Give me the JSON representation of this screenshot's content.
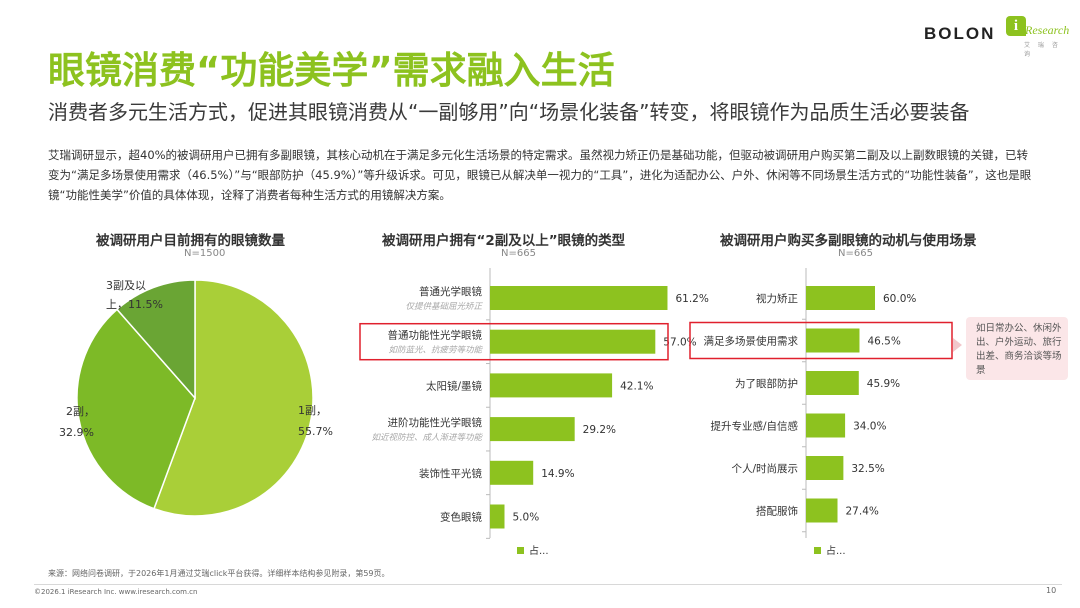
{
  "brand": {
    "bolon": "BOLON",
    "i": "i",
    "research": "Research",
    "sub": "艾 瑞 咨 询"
  },
  "title": "眼镜消费“功能美学”需求融入生活",
  "subtitle": "消费者多元生活方式，促进其眼镜消费从“一副够用”向“场景化装备”转变，将眼镜作为品质生活必要装备",
  "intro": "艾瑞调研显示，超40%的被调研用户已拥有多副眼镜，其核心动机在于满足多元化生活场景的特定需求。虽然视力矫正仍是基础功能，但驱动被调研用户购买第二副及以上副数眼镜的关键，已转变为“满足多场景使用需求（46.5%）”与“眼部防护（45.9%）”等升级诉求。可见，眼镜已从解决单一视力的“工具”，进化为适配办公、户外、休闲等不同场景生活方式的“功能性装备”，这也是眼镜“功能性美学”价值的具体体现，诠释了消费者每种生活方式的用镜解决方案。",
  "colors": {
    "accent": "#8dc21f",
    "dark_green": "#6aa534",
    "mid_green": "#7dba27",
    "light_green": "#a9cf38",
    "highlight": "#e0202d",
    "callout_bg": "#fbe6e8"
  },
  "chart_data": [
    {
      "type": "pie",
      "title": "被调研用户目前拥有的眼镜数量",
      "n": "N=1500",
      "slices": [
        {
          "label": "1副，",
          "value": 55.7,
          "value_label": "55.7%"
        },
        {
          "label": "2副，",
          "value": 32.9,
          "value_label": "32.9%"
        },
        {
          "label": "3副及以上，",
          "label_line1": "3副及以",
          "label_line2": "上，",
          "value": 11.5,
          "value_label": "11.5%"
        }
      ]
    },
    {
      "type": "bar",
      "orientation": "horizontal",
      "title": "被调研用户拥有“2副及以上”眼镜的类型",
      "n": "N=665",
      "xlim": [
        0,
        100
      ],
      "categories": [
        "普通光学眼镜",
        "普通功能性光学眼镜",
        "太阳镜/墨镜",
        "进阶功能性光学眼镜",
        "装饰性平光镜",
        "变色眼镜"
      ],
      "sublabels": [
        "仅提供基础屈光矫正",
        "如防蓝光、抗疲劳等功能",
        "",
        "如近视防控、成人渐进等功能",
        "",
        ""
      ],
      "values": [
        61.2,
        57.0,
        42.1,
        29.2,
        14.9,
        5.0
      ],
      "value_labels": [
        "61.2%",
        "57.0%",
        "42.1%",
        "29.2%",
        "14.9%",
        "5.0%"
      ],
      "highlight_category": "普通功能性光学眼镜",
      "legend": "占..."
    },
    {
      "type": "bar",
      "orientation": "horizontal",
      "title": "被调研用户购买多副眼镜的动机与使用场景",
      "n": "N=665",
      "xlim": [
        0,
        100
      ],
      "categories": [
        "视力矫正",
        "满足多场景使用需求",
        "为了眼部防护",
        "提升专业感/自信感",
        "个人/时尚展示",
        "搭配服饰"
      ],
      "values": [
        60.0,
        46.5,
        45.9,
        34.0,
        32.5,
        27.4
      ],
      "value_labels": [
        "60.0%",
        "46.5%",
        "45.9%",
        "34.0%",
        "32.5%",
        "27.4%"
      ],
      "highlight_category": "满足多场景使用需求",
      "legend": "占...",
      "callout": "如日常办公、休闲外出、户外运动、旅行出差、商务洽谈等场景"
    }
  ],
  "footer": {
    "source": "来源：网络问卷调研，于2026年1月通过艾瑞click平台获得。详细样本结构参见附录，第59页。",
    "copyright": "©2026.1 iResearch Inc.                    www.iresearch.com.cn",
    "page": "10"
  }
}
